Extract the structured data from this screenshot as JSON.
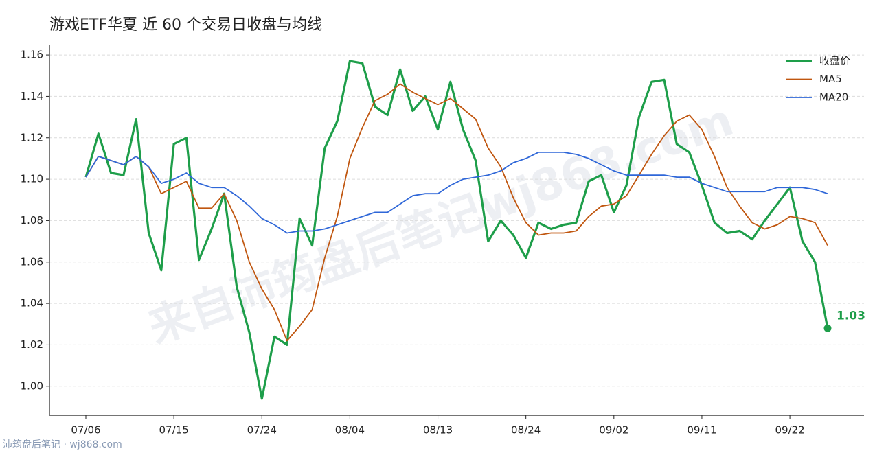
{
  "chart_data": {
    "type": "line",
    "title": "游戏ETF华夏 近 60 个交易日收盘与均线",
    "watermark": "来自沛筠盘后笔记wj868.com",
    "footer": "沛筠盘后笔记 · wj868.com",
    "categories": [
      "07/06",
      null,
      null,
      null,
      null,
      null,
      null,
      "07/15",
      null,
      null,
      null,
      null,
      null,
      null,
      "07/24",
      null,
      null,
      null,
      null,
      null,
      null,
      "08/04",
      null,
      null,
      null,
      null,
      null,
      null,
      "08/13",
      null,
      null,
      null,
      null,
      null,
      null,
      "08/24",
      null,
      null,
      null,
      null,
      null,
      null,
      "09/02",
      null,
      null,
      null,
      null,
      null,
      null,
      "09/11",
      null,
      null,
      null,
      null,
      null,
      null,
      "09/22",
      null,
      null,
      null
    ],
    "series": [
      {
        "name": "收盘价",
        "color": "#1e9e4a",
        "values": [
          1.101,
          1.122,
          1.103,
          1.102,
          1.129,
          1.074,
          1.056,
          1.117,
          1.12,
          1.061,
          1.076,
          1.093,
          1.048,
          1.026,
          0.994,
          1.024,
          1.02,
          1.081,
          1.068,
          1.115,
          1.128,
          1.157,
          1.156,
          1.135,
          1.131,
          1.153,
          1.133,
          1.14,
          1.124,
          1.147,
          1.124,
          1.109,
          1.07,
          1.08,
          1.073,
          1.062,
          1.079,
          1.076,
          1.078,
          1.079,
          1.099,
          1.102,
          1.084,
          1.097,
          1.13,
          1.147,
          1.148,
          1.117,
          1.113,
          1.097,
          1.079,
          1.074,
          1.075,
          1.071,
          1.08,
          1.088,
          1.096,
          1.07,
          1.06,
          1.028
        ],
        "value_labels": [
          null,
          null,
          null,
          null,
          null,
          null,
          null,
          null,
          null,
          null,
          null,
          null,
          null,
          null,
          null,
          null,
          null,
          null,
          null,
          null,
          null,
          null,
          null,
          null,
          null,
          null,
          null,
          null,
          null,
          null,
          null,
          null,
          null,
          null,
          null,
          null,
          null,
          null,
          null,
          null,
          null,
          null,
          null,
          null,
          null,
          null,
          null,
          null,
          null,
          null,
          null,
          null,
          null,
          null,
          null,
          null,
          null,
          null,
          null,
          "1.03"
        ]
      },
      {
        "name": "MA5",
        "color": "#c0560f",
        "values": [
          1.101,
          1.111,
          1.109,
          1.107,
          1.111,
          1.106,
          1.093,
          1.096,
          1.099,
          1.086,
          1.086,
          1.093,
          1.08,
          1.06,
          1.047,
          1.037,
          1.022,
          1.029,
          1.037,
          1.062,
          1.082,
          1.11,
          1.125,
          1.138,
          1.141,
          1.146,
          1.142,
          1.139,
          1.136,
          1.139,
          1.134,
          1.129,
          1.115,
          1.106,
          1.091,
          1.079,
          1.073,
          1.074,
          1.074,
          1.075,
          1.082,
          1.087,
          1.088,
          1.092,
          1.102,
          1.112,
          1.121,
          1.128,
          1.131,
          1.124,
          1.111,
          1.096,
          1.087,
          1.079,
          1.076,
          1.078,
          1.082,
          1.081,
          1.079,
          1.068
        ]
      },
      {
        "name": "MA20",
        "color": "#2f67d8",
        "values": [
          1.101,
          1.111,
          1.109,
          1.107,
          1.111,
          1.106,
          1.098,
          1.1,
          1.103,
          1.098,
          1.096,
          1.096,
          1.092,
          1.087,
          1.081,
          1.078,
          1.074,
          1.075,
          1.075,
          1.076,
          1.078,
          1.08,
          1.082,
          1.084,
          1.084,
          1.088,
          1.092,
          1.093,
          1.093,
          1.097,
          1.1,
          1.101,
          1.102,
          1.104,
          1.108,
          1.11,
          1.113,
          1.113,
          1.113,
          1.112,
          1.11,
          1.107,
          1.104,
          1.102,
          1.102,
          1.102,
          1.102,
          1.101,
          1.101,
          1.098,
          1.096,
          1.094,
          1.094,
          1.094,
          1.094,
          1.096,
          1.096,
          1.096,
          1.095,
          1.093
        ]
      }
    ],
    "ylim": [
      0.986,
      1.165
    ],
    "yticks": [
      {
        "value": 1,
        "label": "1.00"
      },
      1.02,
      1.04,
      1.06,
      1.08,
      {
        "value": 1.1,
        "label": "1.10"
      },
      1.12,
      1.14,
      1.16
    ],
    "grid": true,
    "legend": "upper right"
  }
}
